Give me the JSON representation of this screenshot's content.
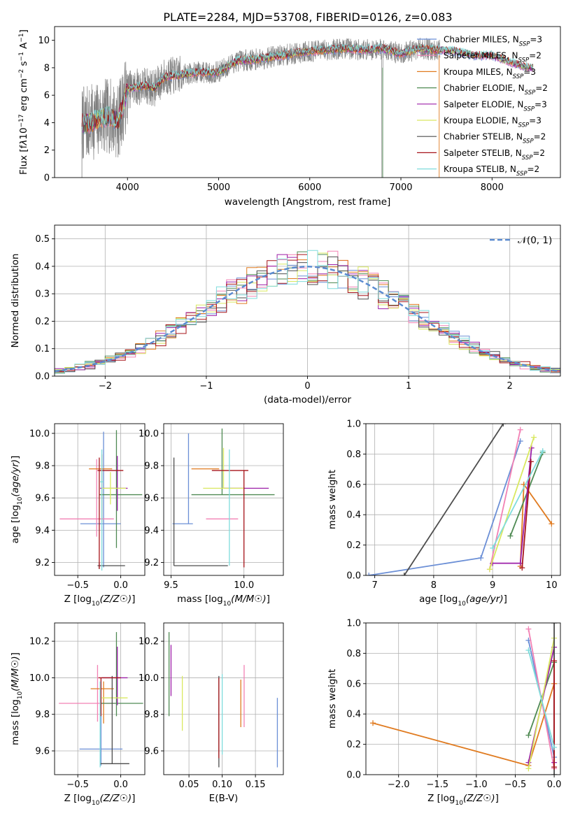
{
  "figure": {
    "title": "PLATE=2284, MJD=53708, FIBERID=0126, z=0.083"
  },
  "styles": {
    "series_colors": {
      "Chabrier MILES": "#6b8fd6",
      "Salpeter MILES": "#f281b4",
      "Kroupa MILES": "#e07b20",
      "Chabrier ELODIE": "#4f8a53",
      "Salpeter ELODIE": "#9c1fa8",
      "Kroupa ELODIE": "#d9e860",
      "Chabrier STELIB": "#4d4d4d",
      "Salpeter STELIB": "#a7141a",
      "Kroupa STELIB": "#7fdcdc"
    },
    "normal_color": "#5b8bd0"
  },
  "chart_data": [
    {
      "id": "spectrum",
      "type": "line",
      "xlabel": "wavelength [Angstrom, rest frame]",
      "ylabel_html": "Flux [f<tspan font-style='italic'>λ</tspan>10<tspan baseline-shift='super' font-size='9'>−17</tspan> erg cm<tspan baseline-shift='super' font-size='9'>−2</tspan> s<tspan baseline-shift='super' font-size='9'>−1</tspan> A<tspan baseline-shift='super' font-size='9'>−1</tspan>]",
      "xlim": [
        3200,
        8750
      ],
      "ylim": [
        0,
        11
      ],
      "xticks": [
        4000,
        5000,
        6000,
        7000,
        8000
      ],
      "yticks": [
        0,
        2,
        4,
        6,
        8,
        10
      ],
      "grid": false,
      "legend_position": "right",
      "legend": [
        {
          "label": "Chabrier MILES, N",
          "sub": "SSP",
          "eq": "=3"
        },
        {
          "label": "Salpeter MILES, N",
          "sub": "SSP",
          "eq": "=2"
        },
        {
          "label": "Kroupa MILES, N",
          "sub": "SSP",
          "eq": "=3"
        },
        {
          "label": "Chabrier ELODIE, N",
          "sub": "SSP",
          "eq": "=2"
        },
        {
          "label": "Salpeter ELODIE, N",
          "sub": "SSP",
          "eq": "=3"
        },
        {
          "label": "Kroupa ELODIE, N",
          "sub": "SSP",
          "eq": "=3"
        },
        {
          "label": "Chabrier STELIB, N",
          "sub": "SSP",
          "eq": "=2"
        },
        {
          "label": "Salpeter STELIB, N",
          "sub": "SSP",
          "eq": "=2"
        },
        {
          "label": "Kroupa STELIB, N",
          "sub": "SSP",
          "eq": "=2"
        }
      ],
      "model_continuum": {
        "x": [
          3500,
          3600,
          3700,
          3800,
          3900,
          4000,
          4100,
          4200,
          4300,
          4400,
          4500,
          4600,
          4700,
          4800,
          4900,
          5000,
          5200,
          5400,
          5600,
          5800,
          6000,
          6200,
          6400,
          6600,
          6800,
          7000,
          7200,
          7400,
          7600,
          7800,
          8000,
          8200,
          8400
        ],
        "y": [
          3.9,
          4.0,
          4.3,
          4.5,
          4.1,
          6.4,
          6.6,
          6.7,
          6.5,
          7.3,
          7.4,
          7.5,
          7.6,
          7.7,
          7.6,
          7.7,
          8.5,
          8.6,
          8.8,
          9.0,
          9.2,
          9.3,
          9.4,
          9.3,
          9.4,
          9.0,
          9.4,
          9.3,
          9.2,
          8.9,
          8.9,
          8.4,
          8.0
        ]
      }
    },
    {
      "id": "residuals",
      "type": "histogram",
      "xlabel": "(data-model)/error",
      "ylabel": "Normed distribution",
      "xlim": [
        -2.5,
        2.5
      ],
      "ylim": [
        0,
        0.55
      ],
      "xticks": [
        -2,
        -1,
        0,
        1,
        2
      ],
      "xticklabels": [
        "−2",
        "−1",
        "0",
        "1",
        "2"
      ],
      "yticks": [
        0,
        0.1,
        0.2,
        0.3,
        0.4,
        0.5
      ],
      "yticklabels": [
        "0.0",
        "0.1",
        "0.2",
        "0.3",
        "0.4",
        "0.5"
      ],
      "grid": true,
      "legend_position": "top-right",
      "legend": "𝒩(0, 1)",
      "bin_width": 0.1,
      "bin_start": -2.5,
      "gaussian": {
        "mean": 0,
        "sigma": 1
      }
    },
    {
      "id": "age_vs_Z",
      "type": "errorbar",
      "xlabel": "Z [log10(Z/Z☉)]",
      "ylabel": "age [log10(age/yr)]",
      "xlim": [
        -0.77,
        0.28
      ],
      "ylim": [
        9.12,
        10.06
      ],
      "xticks": [
        -0.5,
        0.0
      ],
      "xticklabels": [
        "−0.5",
        "0.0"
      ],
      "yticks": [
        9.2,
        9.4,
        9.6,
        9.8,
        10.0
      ],
      "yticklabels": [
        "9.2",
        "9.4",
        "9.6",
        "9.8",
        "10.0"
      ],
      "grid": true,
      "points": [
        {
          "series": "Chabrier MILES",
          "x": -0.2,
          "xerr": [
            0.27,
            0.2
          ],
          "y": 9.44,
          "yerr": [
            0.27,
            0.57
          ]
        },
        {
          "series": "Salpeter MILES",
          "x": -0.28,
          "xerr": [
            0.43,
            0.2
          ],
          "y": 9.47,
          "yerr": [
            0.11,
            0.37
          ]
        },
        {
          "series": "Kroupa MILES",
          "x": -0.22,
          "xerr": [
            0.15,
            0.12
          ],
          "y": 9.78,
          "yerr": [
            0.33,
            0.09
          ]
        },
        {
          "series": "Chabrier ELODIE",
          "x": -0.05,
          "xerr": [
            0.2,
            0.3
          ],
          "y": 9.62,
          "yerr": [
            0.33,
            0.4
          ]
        },
        {
          "series": "Salpeter ELODIE",
          "x": -0.04,
          "xerr": [
            0.2,
            0.12
          ],
          "y": 9.66,
          "yerr": [
            0.14,
            0.2
          ]
        },
        {
          "series": "Kroupa ELODIE",
          "x": -0.12,
          "xerr": [
            0.1,
            0.18
          ],
          "y": 9.66,
          "yerr": [
            0.1,
            0.1
          ]
        },
        {
          "series": "Chabrier STELIB",
          "x": -0.25,
          "xerr": [
            0.02,
            0.3
          ],
          "y": 9.18,
          "yerr": [
            0.02,
            0.02
          ]
        },
        {
          "series": "Salpeter STELIB",
          "x": -0.25,
          "xerr": [
            0.02,
            0.28
          ],
          "y": 9.77,
          "yerr": [
            0.61,
            0.08
          ]
        },
        {
          "series": "Kroupa STELIB",
          "x": -0.22,
          "xerr": [
            0.02,
            0.02
          ],
          "y": 9.7,
          "yerr": [
            0.55,
            0.2
          ]
        }
      ]
    },
    {
      "id": "age_vs_mass",
      "type": "errorbar",
      "xlabel": "mass [log10(M/M☉)]",
      "ylabel": "",
      "xlim": [
        9.45,
        10.27
      ],
      "ylim": [
        9.12,
        10.06
      ],
      "xticks": [
        9.5,
        10.0
      ],
      "xticklabels": [
        "9.5",
        "10.0"
      ],
      "yticks": [
        9.2,
        9.4,
        9.6,
        9.8,
        10.0
      ],
      "yticklabels": [
        "9.2",
        "9.4",
        "9.6",
        "9.8",
        "10.0"
      ],
      "grid": true,
      "points": [
        {
          "series": "Chabrier MILES",
          "x": 9.62,
          "xerr": [
            0.11,
            0.03
          ],
          "y": 9.44,
          "yerr": [
            0.0,
            0.56
          ]
        },
        {
          "series": "Salpeter MILES",
          "x": 9.85,
          "xerr": [
            0.11,
            0.11
          ],
          "y": 9.47,
          "yerr": [
            0.0,
            0.0
          ]
        },
        {
          "series": "Kroupa MILES",
          "x": 9.73,
          "xerr": [
            0.09,
            0.1
          ],
          "y": 9.78,
          "yerr": [
            0.0,
            0.0
          ]
        },
        {
          "series": "Chabrier ELODIE",
          "x": 9.85,
          "xerr": [
            0.21,
            0.36
          ],
          "y": 9.62,
          "yerr": [
            0.0,
            0.41
          ]
        },
        {
          "series": "Salpeter ELODIE",
          "x": 9.92,
          "xerr": [
            0.07,
            0.25
          ],
          "y": 9.66,
          "yerr": [
            0.0,
            0.0
          ]
        },
        {
          "series": "Kroupa ELODIE",
          "x": 9.86,
          "xerr": [
            0.14,
            0.14
          ],
          "y": 9.66,
          "yerr": [
            0.0,
            0.25
          ]
        },
        {
          "series": "Chabrier STELIB",
          "x": 9.52,
          "xerr": [
            0.0,
            0.37
          ],
          "y": 9.18,
          "yerr": [
            0.0,
            0.67
          ]
        },
        {
          "series": "Salpeter STELIB",
          "x": 10.0,
          "xerr": [
            0.22,
            0.03
          ],
          "y": 9.77,
          "yerr": [
            0.6,
            0.0
          ]
        },
        {
          "series": "Kroupa STELIB",
          "x": 9.9,
          "xerr": [
            0.0,
            0.0
          ],
          "y": 9.7,
          "yerr": [
            0.52,
            0.2
          ]
        }
      ]
    },
    {
      "id": "massweight_vs_age",
      "type": "line",
      "xlabel": "age [log10(age/yr)]",
      "ylabel": "mass weight",
      "xlim": [
        6.85,
        10.15
      ],
      "ylim": [
        0,
        1
      ],
      "xticks": [
        7,
        8,
        9,
        10
      ],
      "yticks": [
        0,
        0.2,
        0.4,
        0.6,
        0.8,
        1.0
      ],
      "yticklabels": [
        "0.0",
        "0.2",
        "0.4",
        "0.6",
        "0.8",
        "1.0"
      ],
      "grid": true,
      "series": [
        {
          "name": "Chabrier MILES",
          "x": [
            6.9,
            8.8,
            9.47
          ],
          "y": [
            0.0,
            0.115,
            0.885
          ]
        },
        {
          "name": "Salpeter MILES",
          "x": [
            8.95,
            9.47
          ],
          "y": [
            0.04,
            0.96
          ]
        },
        {
          "name": "Kroupa MILES",
          "x": [
            9.47,
            9.53,
            10.0
          ],
          "y": [
            0.06,
            0.6,
            0.34
          ]
        },
        {
          "name": "Chabrier ELODIE",
          "x": [
            9.3,
            9.85
          ],
          "y": [
            0.26,
            0.81
          ]
        },
        {
          "name": "Salpeter ELODIE",
          "x": [
            9.0,
            9.47,
            9.66
          ],
          "y": [
            0.08,
            0.08,
            0.84
          ]
        },
        {
          "name": "Kroupa ELODIE",
          "x": [
            8.95,
            9.7
          ],
          "y": [
            0.04,
            0.91
          ]
        },
        {
          "name": "Chabrier STELIB",
          "x": [
            7.5,
            9.18
          ],
          "y": [
            0.0,
            1.0
          ]
        },
        {
          "name": "Salpeter STELIB",
          "x": [
            9.5,
            9.65
          ],
          "y": [
            0.05,
            0.75
          ]
        },
        {
          "name": "Kroupa STELIB",
          "x": [
            9.0,
            9.85
          ],
          "y": [
            0.18,
            0.82
          ]
        }
      ]
    },
    {
      "id": "mass_vs_Z",
      "type": "errorbar",
      "xlabel": "Z [log10(Z/Z☉)]",
      "ylabel": "mass [log10(M/M☉)]",
      "xlim": [
        -0.77,
        0.28
      ],
      "ylim": [
        9.47,
        10.3
      ],
      "xticks": [
        -0.5,
        0.0
      ],
      "xticklabels": [
        "−0.5",
        "0.0"
      ],
      "yticks": [
        9.6,
        9.8,
        10.0,
        10.2
      ],
      "yticklabels": [
        "9.6",
        "9.8",
        "10.0",
        "10.2"
      ],
      "grid": true,
      "points": [
        {
          "series": "Chabrier MILES",
          "x": -0.23,
          "xerr": [
            0.25,
            0.25
          ],
          "y": 9.61,
          "yerr": [
            0.09,
            0.27
          ]
        },
        {
          "series": "Salpeter MILES",
          "x": -0.27,
          "xerr": [
            0.45,
            0.2
          ],
          "y": 9.86,
          "yerr": [
            0.1,
            0.21
          ]
        },
        {
          "series": "Kroupa MILES",
          "x": -0.2,
          "xerr": [
            0.15,
            0.12
          ],
          "y": 9.94,
          "yerr": [
            0.19,
            0.04
          ]
        },
        {
          "series": "Chabrier ELODIE",
          "x": -0.05,
          "xerr": [
            0.19,
            0.31
          ],
          "y": 9.86,
          "yerr": [
            0.07,
            0.39
          ]
        },
        {
          "series": "Salpeter ELODIE",
          "x": -0.04,
          "xerr": [
            0.18,
            0.12
          ],
          "y": 10.0,
          "yerr": [
            0.15,
            0.17
          ]
        },
        {
          "series": "Kroupa ELODIE",
          "x": -0.1,
          "xerr": [
            0.12,
            0.18
          ],
          "y": 9.89,
          "yerr": [
            0.0,
            0.0
          ]
        },
        {
          "series": "Chabrier STELIB",
          "x": -0.1,
          "xerr": [
            0.14,
            0.2
          ],
          "y": 9.53,
          "yerr": [
            0.0,
            0.48
          ]
        },
        {
          "series": "Salpeter STELIB",
          "x": -0.23,
          "xerr": [
            0.03,
            0.23
          ],
          "y": 10.0,
          "yerr": [
            0.21,
            0.0
          ]
        },
        {
          "series": "Kroupa STELIB",
          "x": -0.24,
          "xerr": [
            0.0,
            0.0
          ],
          "y": 9.79,
          "yerr": [
            0.28,
            0.19
          ]
        }
      ]
    },
    {
      "id": "mass_vs_EBV",
      "type": "errorbar",
      "xlabel": "E(B-V)",
      "ylabel": "",
      "xlim": [
        0.012,
        0.192
      ],
      "ylim": [
        9.47,
        10.3
      ],
      "xticks": [
        0.05,
        0.1,
        0.15
      ],
      "xticklabels": [
        "0.05",
        "0.10",
        "0.15"
      ],
      "yticks": [
        9.6,
        9.8,
        10.0,
        10.2
      ],
      "yticklabels": [
        "9.6",
        "9.8",
        "10.0",
        "10.2"
      ],
      "grid": true,
      "points": [
        {
          "series": "Chabrier MILES",
          "x": 0.183,
          "xerr": [
            0,
            0
          ],
          "y": 9.7,
          "yerr": [
            0.19,
            0.19
          ]
        },
        {
          "series": "Salpeter MILES",
          "x": 0.133,
          "xerr": [
            0,
            0
          ],
          "y": 9.9,
          "yerr": [
            0.17,
            0.17
          ]
        },
        {
          "series": "Kroupa MILES",
          "x": 0.128,
          "xerr": [
            0,
            0
          ],
          "y": 9.86,
          "yerr": [
            0.13,
            0.13
          ]
        },
        {
          "series": "Chabrier ELODIE",
          "x": 0.02,
          "xerr": [
            0,
            0
          ],
          "y": 10.02,
          "yerr": [
            0.23,
            0.23
          ]
        },
        {
          "series": "Salpeter ELODIE",
          "x": 0.023,
          "xerr": [
            0,
            0
          ],
          "y": 10.04,
          "yerr": [
            0.14,
            0.14
          ]
        },
        {
          "series": "Kroupa ELODIE",
          "x": 0.04,
          "xerr": [
            0,
            0
          ],
          "y": 9.86,
          "yerr": [
            0.15,
            0.15
          ]
        },
        {
          "series": "Chabrier STELIB",
          "x": 0.095,
          "xerr": [
            0,
            0
          ],
          "y": 9.76,
          "yerr": [
            0.25,
            0.25
          ]
        },
        {
          "series": "Salpeter STELIB",
          "x": 0.095,
          "xerr": [
            0,
            0
          ],
          "y": 9.78,
          "yerr": [
            0.22,
            0.22
          ]
        },
        {
          "series": "Kroupa STELIB",
          "x": 0.1,
          "xerr": [
            0,
            0
          ],
          "y": 9.8,
          "yerr": [
            0.22,
            0.22
          ]
        }
      ]
    },
    {
      "id": "massweight_vs_Z",
      "type": "line",
      "xlabel": "Z [log10(Z/Z☉)]",
      "ylabel": "mass weight",
      "xlim": [
        -2.42,
        0.08
      ],
      "ylim": [
        0,
        1
      ],
      "xticks": [
        -2.0,
        -1.5,
        -1.0,
        -0.5,
        0.0
      ],
      "xticklabels": [
        "−2.0",
        "−1.5",
        "−1.0",
        "−0.5",
        "0.0"
      ],
      "yticks": [
        0,
        0.2,
        0.4,
        0.6,
        0.8,
        1.0
      ],
      "yticklabels": [
        "0.0",
        "0.2",
        "0.4",
        "0.6",
        "0.8",
        "1.0"
      ],
      "grid": true,
      "series": [
        {
          "name": "Chabrier MILES",
          "x": [
            -0.33,
            0.0
          ],
          "y": [
            0.885,
            0.115
          ]
        },
        {
          "name": "Salpeter MILES",
          "x": [
            -0.33,
            0.0
          ],
          "y": [
            0.96,
            0.04
          ]
        },
        {
          "name": "Kroupa MILES",
          "x": [
            -2.33,
            -0.33,
            0.0
          ],
          "y": [
            0.34,
            0.06,
            0.6
          ]
        },
        {
          "name": "Chabrier ELODIE",
          "x": [
            -0.33,
            0.0
          ],
          "y": [
            0.26,
            0.74
          ]
        },
        {
          "name": "Salpeter ELODIE",
          "x": [
            -0.33,
            0.0,
            0.0
          ],
          "y": [
            0.08,
            0.84,
            0.08
          ]
        },
        {
          "name": "Kroupa ELODIE",
          "x": [
            -0.33,
            0.0
          ],
          "y": [
            0.04,
            0.9
          ]
        },
        {
          "name": "Chabrier STELIB",
          "x": [
            0.0,
            0.0
          ],
          "y": [
            0.0,
            1.0
          ]
        },
        {
          "name": "Salpeter STELIB",
          "x": [
            0.0,
            0.0
          ],
          "y": [
            0.05,
            0.75
          ]
        },
        {
          "name": "Kroupa STELIB",
          "x": [
            -0.33,
            0.0
          ],
          "y": [
            0.82,
            0.18
          ]
        }
      ]
    }
  ]
}
